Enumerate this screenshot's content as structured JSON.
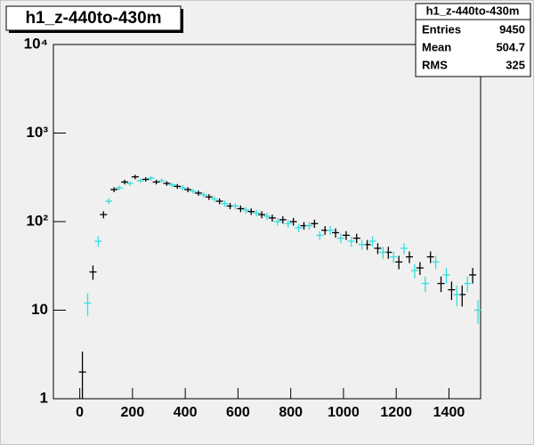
{
  "chart_data": {
    "type": "errorbar",
    "title": "h1_z-440to-430m",
    "stats": {
      "title": "h1_z-440to-430m",
      "rows": [
        [
          "Entries",
          9450
        ],
        [
          "Mean",
          504.7
        ],
        [
          "RMS",
          325
        ]
      ]
    },
    "log_y": true,
    "xlim": [
      -100,
      1520
    ],
    "xticks": [
      0,
      200,
      400,
      600,
      800,
      1000,
      1200,
      1400
    ],
    "ylim": [
      1,
      10000
    ],
    "yticks": [
      1,
      10,
      {
        "value": 100,
        "label": "10²"
      },
      {
        "value": 1000,
        "label": "10³"
      },
      {
        "value": 10000,
        "label": "10⁴"
      }
    ],
    "series": [
      {
        "color": "#000000",
        "x": [
          10,
          50,
          90,
          130,
          170,
          210,
          250,
          290,
          330,
          370,
          410,
          450,
          490,
          530,
          570,
          610,
          650,
          690,
          730,
          770,
          810,
          850,
          890,
          930,
          970,
          1010,
          1050,
          1090,
          1130,
          1170,
          1210,
          1250,
          1290,
          1330,
          1370,
          1410,
          1450,
          1490
        ],
        "values": [
          2,
          27,
          120,
          230,
          280,
          320,
          300,
          280,
          270,
          250,
          230,
          210,
          190,
          170,
          150,
          140,
          130,
          120,
          110,
          105,
          100,
          90,
          95,
          80,
          75,
          70,
          65,
          55,
          50,
          45,
          35,
          40,
          30,
          40,
          20,
          17,
          15,
          25
        ],
        "errors": [
          1.4,
          5,
          11,
          15,
          17,
          18,
          17,
          17,
          16,
          16,
          15,
          14,
          14,
          13,
          12,
          12,
          11,
          11,
          10,
          10,
          10,
          9,
          10,
          9,
          9,
          8,
          8,
          7,
          7,
          7,
          6,
          6,
          5,
          6,
          4,
          4,
          4,
          5
        ]
      },
      {
        "color": "#33dede",
        "x": [
          30,
          70,
          110,
          150,
          190,
          230,
          270,
          310,
          350,
          390,
          430,
          470,
          510,
          550,
          590,
          630,
          670,
          710,
          750,
          790,
          830,
          870,
          910,
          950,
          990,
          1030,
          1070,
          1110,
          1150,
          1190,
          1230,
          1270,
          1310,
          1350,
          1390,
          1430,
          1470,
          1510
        ],
        "values": [
          12,
          60,
          170,
          240,
          270,
          290,
          310,
          290,
          260,
          240,
          220,
          200,
          180,
          160,
          150,
          135,
          125,
          115,
          100,
          95,
          85,
          90,
          70,
          80,
          65,
          60,
          55,
          60,
          45,
          40,
          50,
          28,
          20,
          35,
          25,
          15,
          20,
          10
        ],
        "errors": [
          3.5,
          8,
          13,
          15,
          16,
          17,
          18,
          17,
          16,
          15,
          15,
          14,
          13,
          13,
          12,
          12,
          11,
          11,
          10,
          10,
          9,
          9,
          8,
          9,
          8,
          8,
          7,
          8,
          7,
          6,
          7,
          5,
          4,
          6,
          5,
          4,
          4,
          3
        ]
      }
    ]
  }
}
